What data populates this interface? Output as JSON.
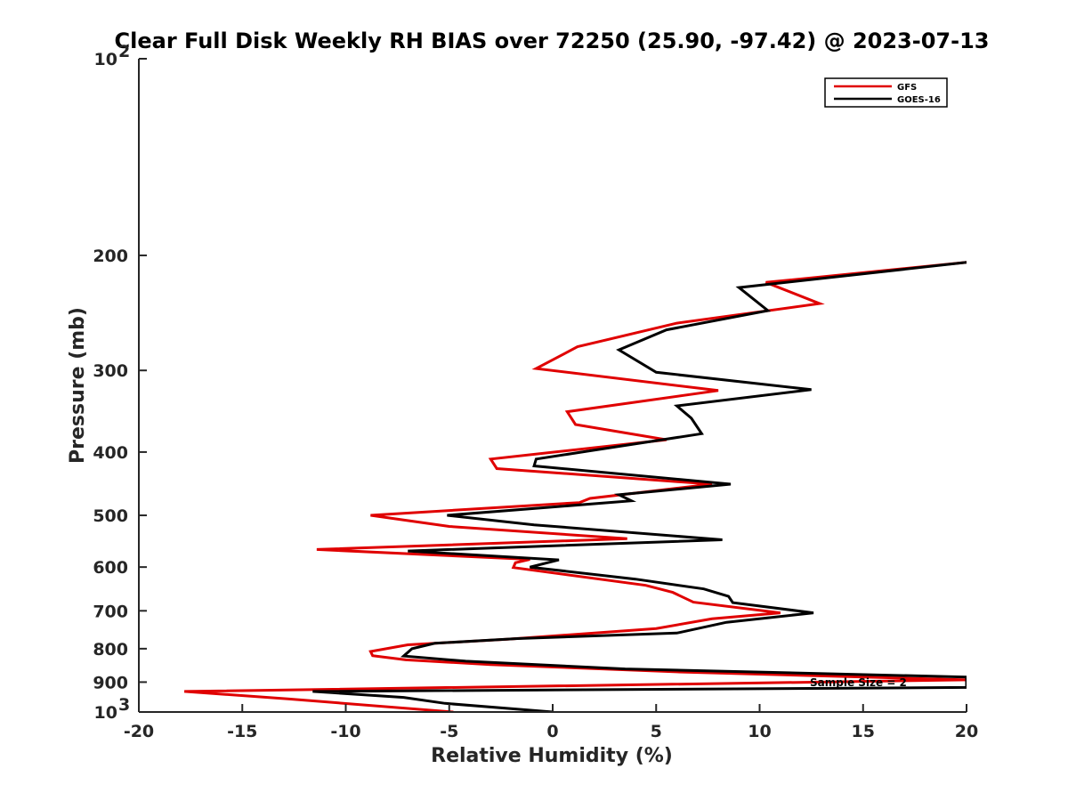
{
  "chart_data": {
    "type": "line",
    "title": "Clear Full Disk Weekly RH BIAS over 72250 (25.90, -97.42) @ 2023-07-13",
    "xlabel": "Relative Humidity (%)",
    "ylabel": "Pressure (mb)",
    "xlim": [
      -20,
      20
    ],
    "ylim": [
      100,
      1000
    ],
    "y_scale": "log",
    "y_reversed": true,
    "x_ticks": [
      -20,
      -15,
      -10,
      -5,
      0,
      5,
      10,
      15,
      20
    ],
    "x_tick_labels": [
      "-20",
      "-15",
      "-10",
      "-5",
      "0",
      "5",
      "10",
      "15",
      "20"
    ],
    "y_ticks": [
      {
        "value": 100,
        "base": "10",
        "exp": "2"
      },
      {
        "value": 200,
        "base": "200",
        "exp": ""
      },
      {
        "value": 300,
        "base": "300",
        "exp": ""
      },
      {
        "value": 400,
        "base": "400",
        "exp": ""
      },
      {
        "value": 500,
        "base": "500",
        "exp": ""
      },
      {
        "value": 600,
        "base": "600",
        "exp": ""
      },
      {
        "value": 700,
        "base": "700",
        "exp": ""
      },
      {
        "value": 800,
        "base": "800",
        "exp": ""
      },
      {
        "value": 900,
        "base": "900",
        "exp": ""
      },
      {
        "value": 1000,
        "base": "10",
        "exp": "3"
      }
    ],
    "grid": false,
    "legend_position": "top-right",
    "series": [
      {
        "name": "GFS",
        "color": "#e00000",
        "points": [
          [
            20.0,
            205
          ],
          [
            10.3,
            220
          ],
          [
            12.9,
            237
          ],
          [
            6.0,
            254
          ],
          [
            1.2,
            276
          ],
          [
            -0.8,
            298
          ],
          [
            8.0,
            322
          ],
          [
            0.7,
            347
          ],
          [
            1.1,
            363
          ],
          [
            5.5,
            383
          ],
          [
            -3.0,
            410
          ],
          [
            -2.7,
            424
          ],
          [
            7.7,
            448
          ],
          [
            1.8,
            471
          ],
          [
            1.3,
            478
          ],
          [
            -8.8,
            500
          ],
          [
            -5.0,
            520
          ],
          [
            3.6,
            543
          ],
          [
            -11.4,
            564
          ],
          [
            -1.1,
            584
          ],
          [
            -1.8,
            591
          ],
          [
            -1.9,
            601
          ],
          [
            4.5,
            640
          ],
          [
            5.8,
            656
          ],
          [
            6.8,
            679
          ],
          [
            11.0,
            705
          ],
          [
            7.7,
            720
          ],
          [
            5.0,
            745
          ],
          [
            -2.2,
            774
          ],
          [
            -7.0,
            789
          ],
          [
            -8.8,
            808
          ],
          [
            -8.7,
            820
          ],
          [
            -7.1,
            832
          ],
          [
            -3.0,
            846
          ],
          [
            6.0,
            868
          ],
          [
            20.0,
            893
          ],
          [
            -17.8,
            930
          ],
          [
            -12.8,
            955
          ],
          [
            -4.8,
            1000
          ]
        ]
      },
      {
        "name": "GOES-16",
        "color": "#000000",
        "points": [
          [
            20.0,
            205
          ],
          [
            9.0,
            224
          ],
          [
            10.4,
            243
          ],
          [
            5.5,
            260
          ],
          [
            3.2,
            279
          ],
          [
            5.0,
            302
          ],
          [
            12.5,
            321
          ],
          [
            6.0,
            340
          ],
          [
            6.7,
            355
          ],
          [
            7.2,
            375
          ],
          [
            -0.8,
            410
          ],
          [
            -0.9,
            420
          ],
          [
            8.6,
            448
          ],
          [
            3.2,
            465
          ],
          [
            3.8,
            475
          ],
          [
            -5.1,
            500
          ],
          [
            -0.9,
            517
          ],
          [
            8.2,
            545
          ],
          [
            -7.0,
            567
          ],
          [
            0.3,
            585
          ],
          [
            -1.1,
            600
          ],
          [
            4.0,
            626
          ],
          [
            7.3,
            648
          ],
          [
            8.5,
            665
          ],
          [
            8.7,
            680
          ],
          [
            12.6,
            705
          ],
          [
            8.4,
            729
          ],
          [
            6.0,
            757
          ],
          [
            -1.7,
            772
          ],
          [
            -5.7,
            785
          ],
          [
            -6.8,
            800
          ],
          [
            -7.2,
            821
          ],
          [
            -4.2,
            836
          ],
          [
            3.5,
            859
          ],
          [
            20.0,
            884
          ],
          [
            20.0,
            917
          ],
          [
            -11.6,
            930
          ],
          [
            -7.2,
            950
          ],
          [
            -5.2,
            970
          ],
          [
            0.0,
            1000
          ]
        ]
      }
    ],
    "annotations": [
      "Sample Size = 2"
    ]
  }
}
